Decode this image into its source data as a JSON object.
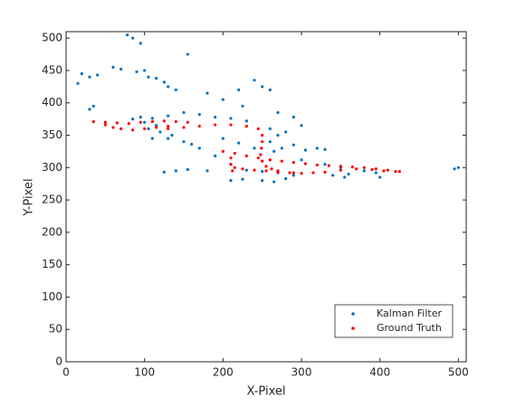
{
  "chart_data": {
    "type": "scatter",
    "xlabel": "X-Pixel",
    "ylabel": "Y-Pixel",
    "xlim": [
      0,
      510
    ],
    "ylim": [
      0,
      510
    ],
    "xticks": [
      0,
      100,
      200,
      300,
      400,
      500
    ],
    "yticks": [
      0,
      50,
      100,
      150,
      200,
      250,
      300,
      350,
      400,
      450,
      500
    ],
    "legend": "southeast",
    "series": [
      {
        "name": "Kalman Filter",
        "color": "#0072bd",
        "x": [
          78,
          85,
          95,
          20,
          30,
          40,
          60,
          70,
          90,
          100,
          105,
          115,
          125,
          130,
          140,
          155,
          180,
          200,
          220,
          240,
          250,
          260,
          225,
          270,
          290,
          300,
          30,
          35,
          15,
          85,
          95,
          110,
          130,
          150,
          170,
          190,
          210,
          230,
          120,
          135,
          150,
          170,
          190,
          210,
          230,
          250,
          270,
          110,
          130,
          160,
          140,
          125,
          155,
          180,
          210,
          225,
          250,
          265,
          280,
          290,
          260,
          265,
          275,
          290,
          305,
          320,
          330,
          300,
          330,
          350,
          360,
          380,
          395,
          400,
          340,
          355,
          495,
          500,
          260,
          270,
          280,
          200,
          220,
          240,
          115,
          100,
          105
        ],
        "values": [
          505,
          500,
          492,
          445,
          440,
          443,
          455,
          452,
          448,
          450,
          440,
          438,
          432,
          425,
          420,
          475,
          415,
          405,
          420,
          435,
          425,
          420,
          395,
          385,
          378,
          365,
          390,
          395,
          430,
          375,
          378,
          376,
          380,
          385,
          382,
          378,
          376,
          372,
          355,
          350,
          340,
          330,
          318,
          305,
          296,
          294,
          292,
          345,
          345,
          336,
          295,
          293,
          297,
          295,
          280,
          282,
          280,
          278,
          283,
          288,
          340,
          325,
          330,
          335,
          327,
          330,
          328,
          312,
          305,
          300,
          290,
          295,
          292,
          285,
          288,
          285,
          298,
          300,
          360,
          350,
          355,
          345,
          338,
          330,
          365,
          370,
          360
        ]
      },
      {
        "name": "Ground Truth",
        "color": "#ff0000",
        "x": [
          35,
          50,
          65,
          80,
          95,
          110,
          125,
          140,
          155,
          60,
          70,
          85,
          100,
          115,
          130,
          50,
          130,
          150,
          170,
          190,
          210,
          230,
          245,
          250,
          250,
          249,
          248,
          250,
          255,
          262,
          270,
          285,
          300,
          315,
          200,
          215,
          230,
          245,
          260,
          275,
          290,
          305,
          320,
          335,
          350,
          365,
          380,
          395,
          410,
          425,
          215,
          225,
          240,
          255,
          270,
          290,
          330,
          350,
          370,
          390,
          405,
          420,
          210,
          210,
          212
        ],
        "values": [
          371,
          370,
          369,
          368,
          370,
          371,
          372,
          371,
          370,
          362,
          360,
          358,
          360,
          362,
          364,
          366,
          360,
          362,
          364,
          366,
          366,
          364,
          360,
          350,
          340,
          330,
          320,
          310,
          302,
          298,
          295,
          292,
          291,
          292,
          325,
          322,
          318,
          315,
          312,
          310,
          308,
          306,
          304,
          303,
          302,
          301,
          300,
          298,
          296,
          294,
          300,
          298,
          296,
          295,
          293,
          292,
          293,
          296,
          298,
          297,
          295,
          294,
          315,
          305,
          295
        ]
      }
    ]
  }
}
